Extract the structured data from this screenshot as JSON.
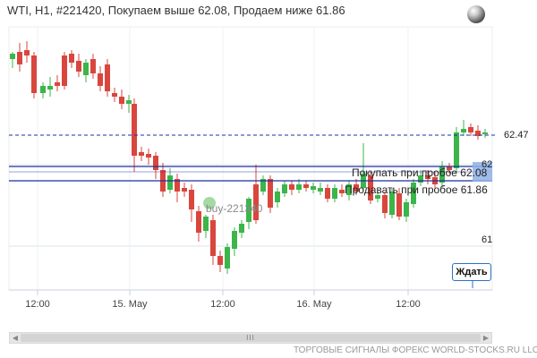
{
  "header": {
    "title": "WTI, H1, #221420, Покупаем выше 62.08, Продаем ниже 61.86"
  },
  "icons": {
    "globe": "globe-icon"
  },
  "price_axis": {
    "current_price": "62.47",
    "level_62": "62",
    "level_61": "61"
  },
  "signal": {
    "buy_text": "Покупать при пробое 62.08",
    "sell_text": "Продавать при пробое 61.86",
    "marker_label": "buy-221340"
  },
  "x_axis": {
    "ticks": [
      "12:00",
      "15. May",
      "12:00",
      "16. May",
      "12:00"
    ]
  },
  "wait_button": {
    "label": "Ждать"
  },
  "scrollbar": {
    "grip": "III"
  },
  "footer": {
    "text": "ТОРГОВЫЕ СИГНАЛЫ ФОРЕКС WORLD-STOCKS.RU LLC"
  },
  "colors": {
    "bull": "#3cb54a",
    "bear": "#d9463e",
    "signal_line": "#1f2f9f",
    "price_line": "#1f2f9f",
    "grid": "#dde3ea",
    "highlight": "#8fb2e6"
  }
}
